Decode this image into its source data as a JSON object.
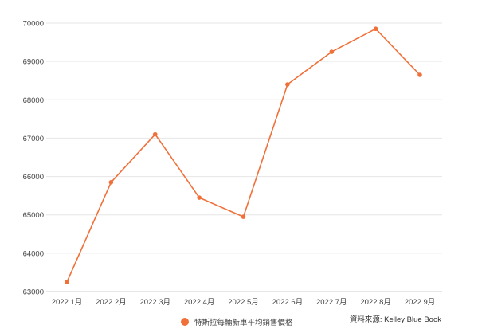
{
  "chart_data": {
    "type": "line",
    "categories": [
      "2022 1月",
      "2022 2月",
      "2022 3月",
      "2022 4月",
      "2022 5月",
      "2022 6月",
      "2022 7月",
      "2022 8月",
      "2022 9月"
    ],
    "series": [
      {
        "name": "特斯拉每輛新車平均銷售價格",
        "values": [
          63250,
          65850,
          67100,
          65450,
          64950,
          68400,
          69250,
          69850,
          68650
        ],
        "color": "#f0703a"
      }
    ],
    "yticks": [
      63000,
      64000,
      65000,
      66000,
      67000,
      68000,
      69000,
      70000
    ],
    "ylim": [
      63000,
      70000
    ],
    "grid": true,
    "legend_position": "bottom"
  },
  "source_text": "資料來源: Kelley Blue Book"
}
